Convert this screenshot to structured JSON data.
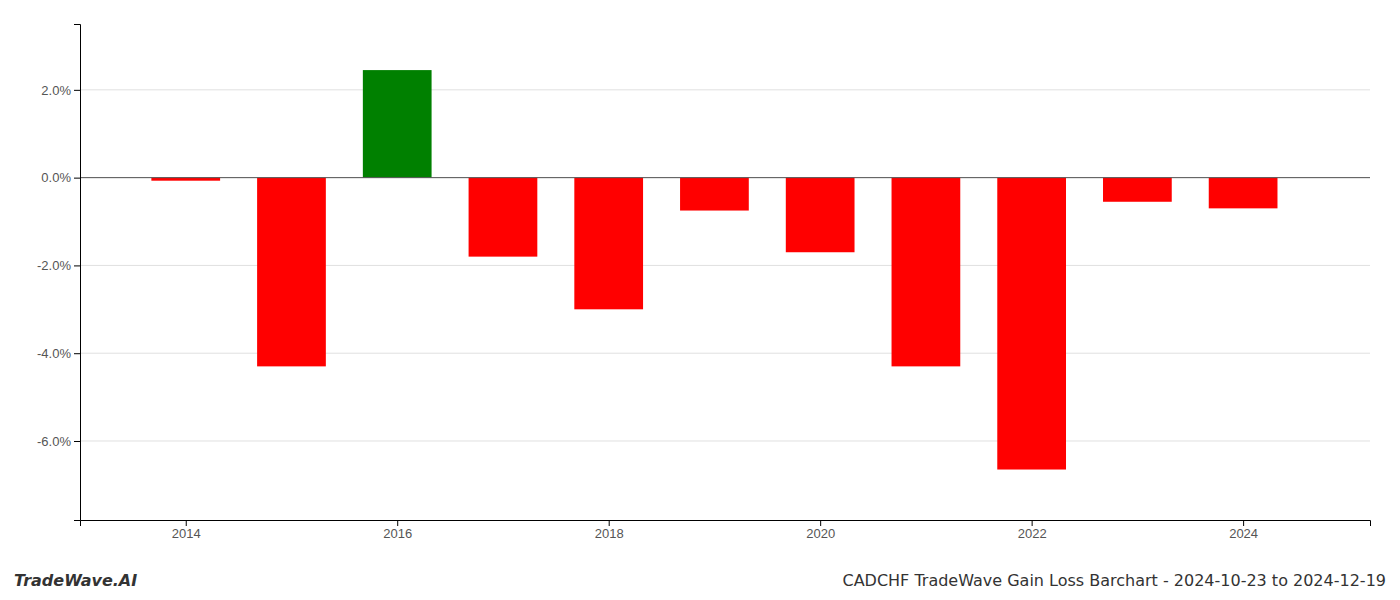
{
  "chart_data": {
    "type": "bar",
    "title": "CADCHF TradeWave Gain Loss Barchart - 2024-10-23 to 2024-12-19",
    "annotations": [
      "TradeWave.AI"
    ],
    "x": [
      2014,
      2015,
      2016,
      2017,
      2018,
      2019,
      2020,
      2021,
      2022,
      2023,
      2024
    ],
    "values": [
      -0.07,
      -4.3,
      2.45,
      -1.8,
      -3.0,
      -0.75,
      -1.7,
      -4.3,
      -6.65,
      -0.55,
      -0.7
    ],
    "colors": [
      "#ff0000",
      "#ff0000",
      "#008000",
      "#ff0000",
      "#ff0000",
      "#ff0000",
      "#ff0000",
      "#ff0000",
      "#ff0000",
      "#ff0000",
      "#ff0000"
    ],
    "xlim": [
      2013.0,
      2025.2
    ],
    "xticks": [
      2014,
      2016,
      2018,
      2020,
      2022,
      2024
    ],
    "ylim": [
      -7.8,
      3.5
    ],
    "yticks": [
      {
        "value": -6.0,
        "label": "-6.0%"
      },
      {
        "value": -4.0,
        "label": "-4.0%"
      },
      {
        "value": -2.0,
        "label": "-2.0%"
      },
      {
        "value": 0.0,
        "label": "0.0%"
      },
      {
        "value": 2.0,
        "label": "2.0%"
      }
    ],
    "grid": true
  }
}
